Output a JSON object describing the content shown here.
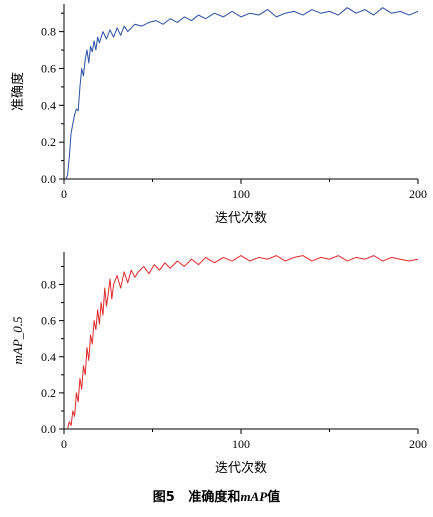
{
  "figure": {
    "caption_number": "图5",
    "caption_text": "准确度和",
    "caption_italic": "mAP",
    "caption_suffix": "值"
  },
  "chart_data": [
    {
      "type": "line",
      "xlabel": "迭代次数",
      "ylabel": "准确度",
      "xlim": [
        0,
        200
      ],
      "ylim": [
        0,
        0.95
      ],
      "xticks": [
        "0",
        "100",
        "200"
      ],
      "yticks": [
        "0.0",
        "0.2",
        "0.4",
        "0.6",
        "0.8"
      ],
      "grid": false,
      "series": [
        {
          "color": "#2b4fa3",
          "x": [
            1,
            2,
            3,
            4,
            5,
            6,
            7,
            8,
            9,
            10,
            11,
            12,
            13,
            14,
            15,
            16,
            17,
            18,
            19,
            20,
            22,
            24,
            26,
            28,
            30,
            32,
            34,
            36,
            38,
            40,
            44,
            48,
            52,
            56,
            60,
            64,
            68,
            72,
            76,
            80,
            85,
            90,
            95,
            100,
            105,
            110,
            115,
            120,
            125,
            130,
            135,
            140,
            145,
            150,
            155,
            160,
            165,
            170,
            175,
            180,
            185,
            190,
            195,
            200
          ],
          "values": [
            0.0,
            0.02,
            0.12,
            0.25,
            0.3,
            0.35,
            0.38,
            0.37,
            0.5,
            0.6,
            0.56,
            0.65,
            0.7,
            0.63,
            0.72,
            0.69,
            0.75,
            0.7,
            0.77,
            0.74,
            0.8,
            0.76,
            0.81,
            0.77,
            0.82,
            0.78,
            0.83,
            0.8,
            0.82,
            0.84,
            0.83,
            0.85,
            0.86,
            0.84,
            0.87,
            0.85,
            0.88,
            0.86,
            0.89,
            0.87,
            0.9,
            0.88,
            0.91,
            0.88,
            0.9,
            0.89,
            0.92,
            0.88,
            0.9,
            0.91,
            0.89,
            0.92,
            0.9,
            0.91,
            0.89,
            0.93,
            0.9,
            0.92,
            0.89,
            0.93,
            0.9,
            0.91,
            0.89,
            0.91
          ]
        }
      ]
    },
    {
      "type": "line",
      "xlabel": "迭代次数",
      "ylabel": "mAP_0.5",
      "xlim": [
        0,
        200
      ],
      "ylim": [
        0,
        0.98
      ],
      "xticks": [
        "0",
        "100",
        "200"
      ],
      "yticks": [
        "0.0",
        "0.2",
        "0.4",
        "0.6",
        "0.8"
      ],
      "grid": false,
      "series": [
        {
          "color": "#e02b2b",
          "x": [
            2,
            3,
            4,
            5,
            6,
            7,
            8,
            9,
            10,
            11,
            12,
            13,
            14,
            15,
            16,
            17,
            18,
            19,
            20,
            21,
            22,
            23,
            24,
            25,
            26,
            27,
            28,
            30,
            32,
            34,
            36,
            38,
            40,
            42,
            45,
            48,
            51,
            54,
            57,
            60,
            64,
            68,
            72,
            76,
            80,
            85,
            90,
            95,
            100,
            105,
            110,
            115,
            120,
            125,
            130,
            135,
            140,
            145,
            150,
            155,
            160,
            165,
            170,
            175,
            180,
            185,
            190,
            195,
            200
          ],
          "values": [
            0.0,
            0.04,
            0.02,
            0.1,
            0.07,
            0.2,
            0.15,
            0.28,
            0.22,
            0.35,
            0.3,
            0.45,
            0.38,
            0.52,
            0.47,
            0.6,
            0.55,
            0.66,
            0.58,
            0.7,
            0.63,
            0.78,
            0.68,
            0.75,
            0.83,
            0.72,
            0.8,
            0.85,
            0.78,
            0.87,
            0.81,
            0.88,
            0.84,
            0.87,
            0.9,
            0.86,
            0.91,
            0.88,
            0.92,
            0.89,
            0.93,
            0.9,
            0.94,
            0.91,
            0.95,
            0.92,
            0.95,
            0.93,
            0.96,
            0.93,
            0.95,
            0.94,
            0.96,
            0.93,
            0.95,
            0.96,
            0.93,
            0.95,
            0.94,
            0.96,
            0.93,
            0.95,
            0.94,
            0.96,
            0.93,
            0.95,
            0.94,
            0.93,
            0.94
          ]
        }
      ]
    }
  ]
}
